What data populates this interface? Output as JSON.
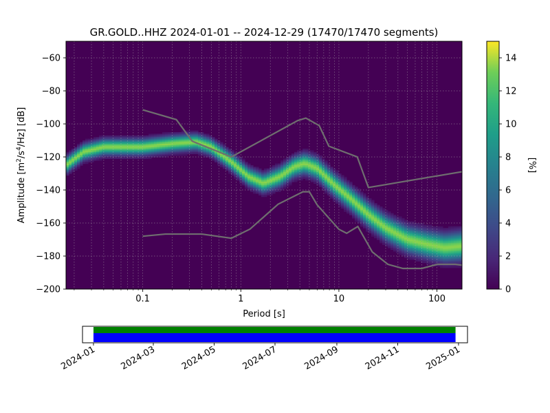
{
  "chart_data": {
    "type": "heatmap",
    "title": "GR.GOLD..HHZ   2024-01-01 -- 2024-12-29  (17470/17470 segments)",
    "xlabel": "Period [s]",
    "ylabel_parts": [
      "Amplitude [m",
      "2",
      "/s",
      "4",
      "/Hz] [dB]"
    ],
    "x_scale": "log",
    "xlim": [
      0.0165,
      180
    ],
    "ylim": [
      -200,
      -50
    ],
    "x_ticks": [
      {
        "value": 0.1,
        "label": "0.1"
      },
      {
        "value": 1,
        "label": "1"
      },
      {
        "value": 10,
        "label": "10"
      },
      {
        "value": 100,
        "label": "100"
      }
    ],
    "y_ticks": [
      {
        "value": -60,
        "label": "−60"
      },
      {
        "value": -80,
        "label": "−80"
      },
      {
        "value": -100,
        "label": "−100"
      },
      {
        "value": -120,
        "label": "−120"
      },
      {
        "value": -140,
        "label": "−140"
      },
      {
        "value": -160,
        "label": "−160"
      },
      {
        "value": -180,
        "label": "−180"
      },
      {
        "value": -200,
        "label": "−200"
      }
    ],
    "grid": true,
    "colorbar": {
      "label": "[%]",
      "range": [
        0,
        15
      ],
      "colormap": "viridis",
      "ticks": [
        {
          "value": 0,
          "label": "0"
        },
        {
          "value": 2,
          "label": "2"
        },
        {
          "value": 4,
          "label": "4"
        },
        {
          "value": 6,
          "label": "6"
        },
        {
          "value": 8,
          "label": "8"
        },
        {
          "value": 10,
          "label": "10"
        },
        {
          "value": 12,
          "label": "12"
        },
        {
          "value": 14,
          "label": "14"
        }
      ]
    },
    "mode_curve": {
      "period": [
        0.0165,
        0.025,
        0.04,
        0.06,
        0.1,
        0.2,
        0.35,
        0.5,
        0.8,
        1.2,
        1.7,
        2.5,
        3.5,
        4.5,
        6,
        9,
        13,
        20,
        30,
        50,
        80,
        120,
        180
      ],
      "amplitude": [
        -125,
        -117,
        -114,
        -114,
        -114,
        -112,
        -111,
        -114,
        -123,
        -132,
        -136,
        -132,
        -126,
        -124,
        -127,
        -137,
        -145,
        -155,
        -163,
        -170,
        -173,
        -175,
        -174
      ]
    },
    "noise_models": {
      "color": "#6f6f6f",
      "high": {
        "period": [
          0.1,
          0.22,
          0.32,
          0.8,
          3.8,
          4.6,
          6.3,
          7.9,
          15.4,
          20,
          354.8
        ],
        "amplitude": [
          -91.5,
          -97.4,
          -110.5,
          -120,
          -98,
          -96.5,
          -101,
          -113.5,
          -120,
          -138.5,
          -126
        ]
      },
      "low": {
        "period": [
          0.1,
          0.17,
          0.4,
          0.8,
          1.24,
          2.4,
          4.3,
          5,
          6,
          10,
          12,
          15.6,
          21.9,
          31.6,
          45,
          70,
          101,
          154,
          328
        ],
        "amplitude": [
          -168,
          -166.7,
          -166.7,
          -169.2,
          -163.7,
          -148.6,
          -141.1,
          -141.1,
          -149,
          -163.8,
          -166.2,
          -162.1,
          -177.5,
          -185,
          -187.5,
          -187.5,
          -185,
          -185,
          -187.5
        ]
      }
    },
    "coverage": {
      "ticks": [
        "2024-01",
        "2024-03",
        "2024-05",
        "2024-07",
        "2024-09",
        "2024-11",
        "2025-01"
      ],
      "range": [
        "2023-12-21",
        "2025-01-10"
      ],
      "data_span": [
        "2024-01-01",
        "2024-12-29"
      ],
      "top_bar_color": "#008000",
      "bottom_bar_color": "#0000ff"
    }
  }
}
